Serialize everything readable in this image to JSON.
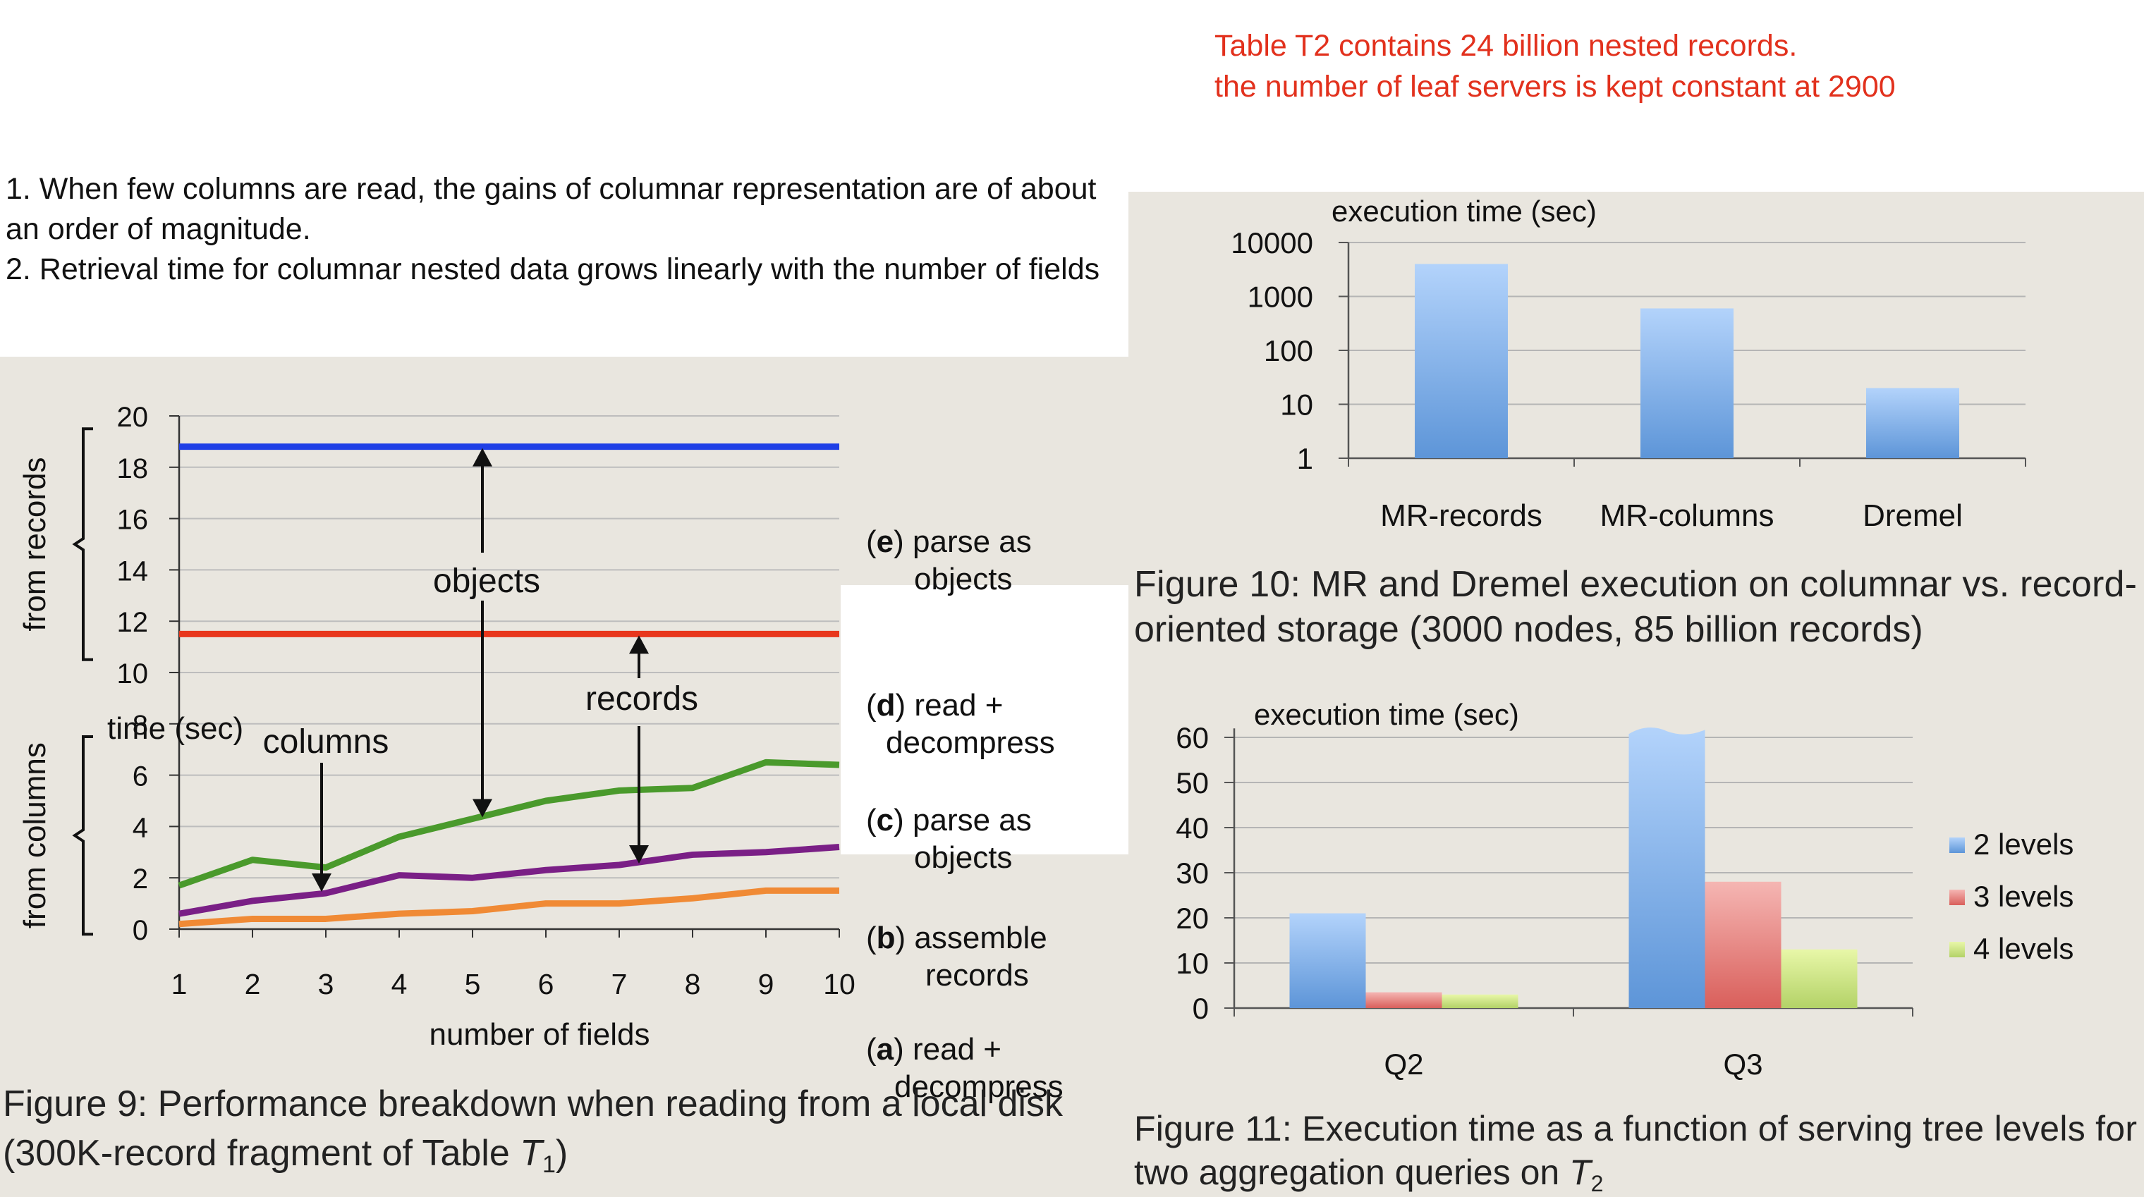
{
  "annotations": {
    "red_note": [
      "Table T2 contains 24 billion nested records.",
      "the number of leaf servers is kept constant at 2900"
    ],
    "notes": [
      "1. When few columns are read, the gains of columnar representation are of about an order of magnitude.",
      "2. Retrieval time for columnar nested data grows linearly with the number of fields"
    ]
  },
  "chart_data": [
    {
      "id": "fig9",
      "type": "line",
      "ylabel": "time (sec)",
      "xlabel": "number of fields",
      "x": [
        1,
        2,
        3,
        4,
        5,
        6,
        7,
        8,
        9,
        10
      ],
      "ylim": [
        0,
        20
      ],
      "yticks": [
        0,
        2,
        4,
        6,
        8,
        10,
        12,
        14,
        16,
        18,
        20
      ],
      "grid": true,
      "series": [
        {
          "key": "e",
          "color": "#1f3fe6",
          "values": [
            18.8,
            18.8,
            18.8,
            18.8,
            18.8,
            18.8,
            18.8,
            18.8,
            18.8,
            18.8
          ]
        },
        {
          "key": "d",
          "color": "#e8371c",
          "values": [
            11.5,
            11.5,
            11.5,
            11.5,
            11.5,
            11.5,
            11.5,
            11.5,
            11.5,
            11.5
          ]
        },
        {
          "key": "c",
          "color": "#4a9a2c",
          "values": [
            1.7,
            2.7,
            2.4,
            3.6,
            4.3,
            5.0,
            5.4,
            5.5,
            6.5,
            6.4
          ]
        },
        {
          "key": "b",
          "color": "#7a1f86",
          "values": [
            0.6,
            1.1,
            1.4,
            2.1,
            2.0,
            2.3,
            2.5,
            2.9,
            3.0,
            3.2
          ]
        },
        {
          "key": "a",
          "color": "#f08a35",
          "values": [
            0.2,
            0.4,
            0.4,
            0.6,
            0.7,
            1.0,
            1.0,
            1.2,
            1.5,
            1.5
          ]
        }
      ],
      "legend": [
        {
          "letter": "e",
          "line1": "parse as",
          "line2": "objects"
        },
        {
          "letter": "d",
          "line1": "read +",
          "line2": "decompress"
        },
        {
          "letter": "c",
          "line1": "parse as",
          "line2": "objects"
        },
        {
          "letter": "b",
          "line1": "assemble",
          "line2": "records"
        },
        {
          "letter": "a",
          "line1": "read +",
          "line2": "decompress"
        }
      ],
      "annotations": {
        "objects": "objects",
        "records": "records",
        "columns": "columns"
      },
      "brackets": {
        "from_records": "from records",
        "from_columns": "from columns"
      },
      "caption_line1": "Figure 9: Performance breakdown when reading from a local disk",
      "caption_line2_prefix": "(300K-record fragment of Table ",
      "caption_var": "T",
      "caption_sub": "1",
      "caption_line2_suffix": ")"
    },
    {
      "id": "fig10",
      "type": "bar",
      "scale": "log",
      "ylabel": "execution time (sec)",
      "categories": [
        "MR-records",
        "MR-columns",
        "Dremel"
      ],
      "values": [
        4000,
        600,
        20
      ],
      "ylim": [
        1,
        10000
      ],
      "yticks": [
        1,
        10,
        100,
        1000,
        10000
      ],
      "grid": true,
      "caption_line1": "Figure 10:  MR and Dremel execution on columnar vs. record-",
      "caption_line2": "oriented storage (3000 nodes, 85 billion records)"
    },
    {
      "id": "fig11",
      "type": "bar",
      "ylabel": "execution time (sec)",
      "categories": [
        "Q2",
        "Q3"
      ],
      "ylim": [
        0,
        60
      ],
      "yticks": [
        0,
        10,
        20,
        30,
        40,
        50,
        60
      ],
      "grid": true,
      "legend_position": "right",
      "series": [
        {
          "name": "2 levels",
          "color": "#6a9ed8",
          "values": [
            21,
            63
          ]
        },
        {
          "name": "3 levels",
          "color": "#de6d6a",
          "values": [
            3.5,
            28
          ]
        },
        {
          "name": "4 levels",
          "color": "#c6dd78",
          "values": [
            3,
            13
          ]
        }
      ],
      "caption_line1": "Figure 11:  Execution time as a function of serving tree levels for",
      "caption_line2_prefix": "two aggregation queries on ",
      "caption_var": "T",
      "caption_sub": "2"
    }
  ]
}
